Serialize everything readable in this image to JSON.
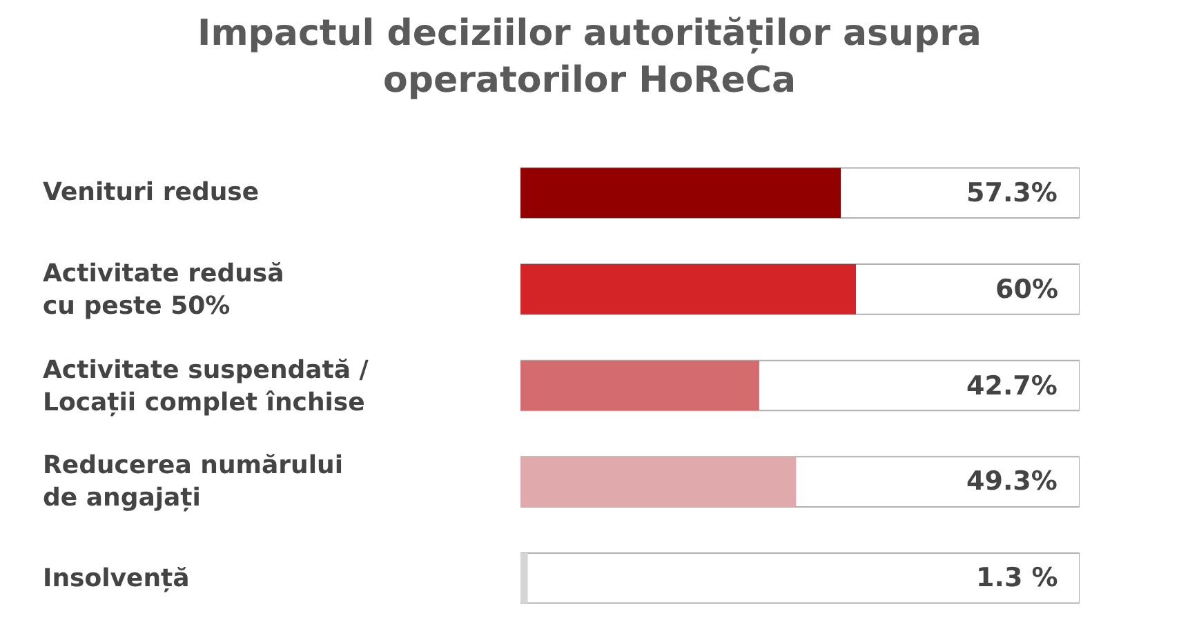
{
  "chart_data": {
    "type": "bar",
    "orientation": "horizontal",
    "title": "Impactul deciziilor autorităților asupra\noperatorilor HoReCa",
    "categories": [
      "Venituri reduse",
      "Activitate redusă\ncu peste 50%",
      "Activitate suspendată /\nLocații complet închise",
      "Reducerea numărului\nde angajați",
      "Insolvență"
    ],
    "values": [
      57.3,
      60,
      42.7,
      49.3,
      1.3
    ],
    "colors": [
      "#930000",
      "#d42427",
      "#d46b6e",
      "#e0aaac",
      "#d5d5d5"
    ],
    "value_labels": [
      "57.3%",
      "60%",
      "42.7%",
      "49.3%",
      "1.3 %"
    ],
    "xlim": [
      0,
      100
    ],
    "tick_labels": false,
    "grid": false,
    "legend": false
  }
}
